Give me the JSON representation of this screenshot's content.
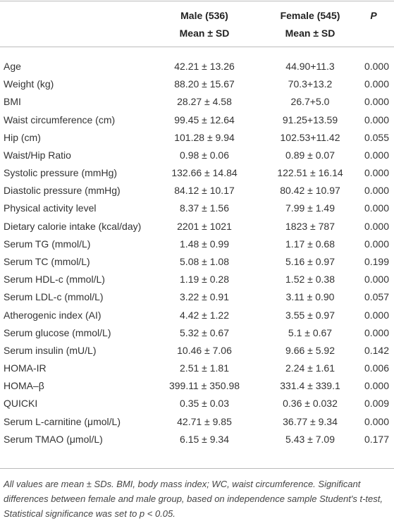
{
  "table": {
    "header": [
      "Male (536)",
      "Female (545)",
      "P"
    ],
    "subheader": [
      "Mean ± SD",
      "Mean ± SD"
    ],
    "rows": [
      [
        "Age",
        "42.21 ± 13.26",
        "44.90+11.3",
        "0.000"
      ],
      [
        "Weight (kg)",
        "88.20 ± 15.67",
        "70.3+13.2",
        "0.000"
      ],
      [
        "BMI",
        "28.27 ± 4.58",
        "26.7+5.0",
        "0.000"
      ],
      [
        "Waist circumference (cm)",
        "99.45 ± 12.64",
        "91.25+13.59",
        "0.000"
      ],
      [
        "Hip (cm)",
        "101.28 ± 9.94",
        "102.53+11.42",
        "0.055"
      ],
      [
        "Waist/Hip Ratio",
        "0.98 ± 0.06",
        "0.89 ± 0.07",
        "0.000"
      ],
      [
        "Systolic pressure (mmHg)",
        "132.66 ± 14.84",
        "122.51 ± 16.14",
        "0.000"
      ],
      [
        "Diastolic pressure (mmHg)",
        "84.12 ± 10.17",
        "80.42 ± 10.97",
        "0.000"
      ],
      [
        "Physical activity level",
        "8.37 ± 1.56",
        "7.99 ± 1.49",
        "0.000"
      ],
      [
        "Dietary calorie intake (kcal/day)",
        "2201 ± 1021",
        "1823 ± 787",
        "0.000"
      ],
      [
        "Serum TG (mmol/L)",
        "1.48 ± 0.99",
        "1.17 ± 0.68",
        "0.000"
      ],
      [
        "Serum TC (mmol/L)",
        "5.08 ± 1.08",
        "5.16 ± 0.97",
        "0.199"
      ],
      [
        "Serum HDL-c (mmol/L)",
        "1.19 ± 0.28",
        "1.52 ± 0.38",
        "0.000"
      ],
      [
        "Serum LDL-c (mmol/L)",
        "3.22 ± 0.91",
        "3.11 ± 0.90",
        "0.057"
      ],
      [
        "Atherogenic index (AI)",
        "4.42 ± 1.22",
        "3.55 ± 0.97",
        "0.000"
      ],
      [
        "Serum glucose (mmol/L)",
        "5.32 ± 0.67",
        "5.1 ± 0.67",
        "0.000"
      ],
      [
        "Serum insulin (mU/L)",
        "10.46 ± 7.06",
        "9.66 ± 5.92",
        "0.142"
      ],
      [
        "HOMA-IR",
        "2.51 ± 1.81",
        "2.24 ± 1.61",
        "0.006"
      ],
      [
        "HOMA–β",
        "399.11 ± 350.98",
        "331.4 ± 339.1",
        "0.000"
      ],
      [
        "QUICKI",
        "0.35 ± 0.03",
        "0.36 ± 0.032",
        "0.009"
      ],
      [
        "Serum L-carnitine (μmol/L)",
        "42.71 ± 9.85",
        "36.77 ± 9.34",
        "0.000"
      ],
      [
        "Serum TMAO (μmol/L)",
        "6.15 ± 9.34",
        "5.43 ± 7.09",
        "0.177"
      ]
    ],
    "footnote": "All values are mean ± SDs. BMI, body mass index; WC, waist circumference. Significant differences between female and male group, based on independence sample Student's t-test, Statistical significance was set to p < 0.05."
  }
}
